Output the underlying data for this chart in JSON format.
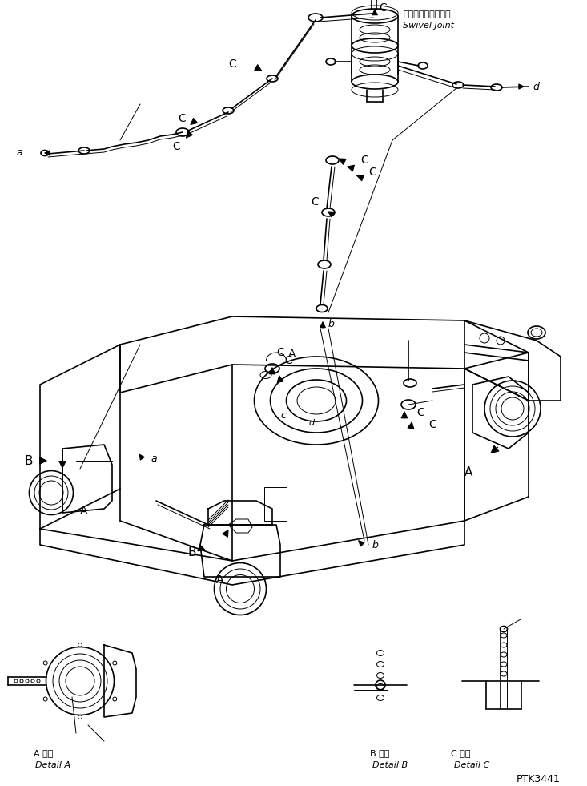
{
  "background_color": "#ffffff",
  "fig_width": 7.33,
  "fig_height": 9.81,
  "dpi": 100,
  "labels": {
    "swivel_joint_jp": "スイベルジョイント",
    "swivel_joint_en": "Swivel Joint",
    "detail_a_jp": "A 詳細",
    "detail_a_en": "Detail A",
    "detail_b_jp": "B 詳細",
    "detail_b_en": "Detail B",
    "detail_c_jp": "C 詳細",
    "detail_c_en": "Detail C",
    "part_number": "PTK3441"
  },
  "line_color": "#000000",
  "text_color": "#000000",
  "linewidth": 1.2,
  "thin_linewidth": 0.7
}
